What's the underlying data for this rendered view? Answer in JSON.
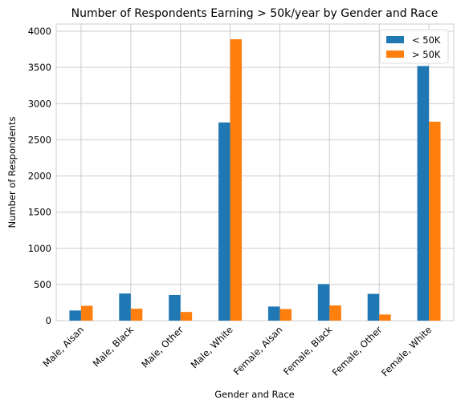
{
  "chart_data": {
    "type": "bar",
    "title": "Number of Respondents Earning > 50k/year by Gender and Race",
    "xlabel": "Gender and Race",
    "ylabel": "Number of Respondents",
    "categories": [
      "Male, Aisan",
      "Male, Black",
      "Male, Other",
      "Male, White",
      "Female, Aisan",
      "Female, Black",
      "Female, Other",
      "Female, White"
    ],
    "series": [
      {
        "name": "< 50K",
        "color": "#1f77b4",
        "values": [
          140,
          375,
          355,
          2740,
          195,
          505,
          370,
          3520
        ]
      },
      {
        "name": "> 50K",
        "color": "#ff7f0e",
        "values": [
          205,
          165,
          120,
          3890,
          160,
          210,
          85,
          2750
        ]
      }
    ],
    "ylim": [
      0,
      4100
    ],
    "yticks": [
      0,
      500,
      1000,
      1500,
      2000,
      2500,
      3000,
      3500,
      4000
    ],
    "grid": true,
    "legend_position": "top-right"
  }
}
